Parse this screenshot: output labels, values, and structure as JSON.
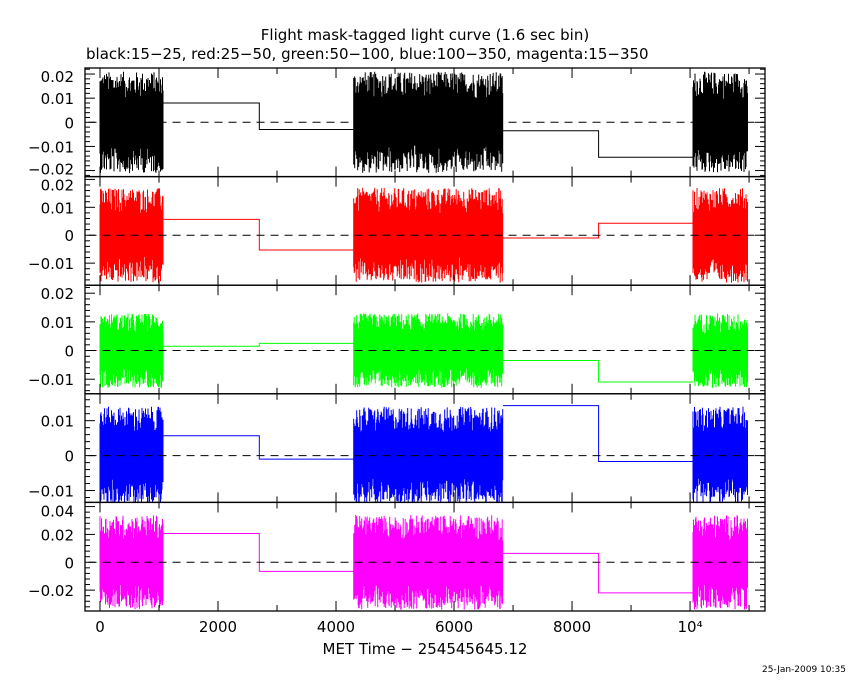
{
  "title": "Flight mask-tagged light curve (1.6 sec bin)",
  "subtitle": "black:15−25, red:25−50, green:50−100, blue:100−350, magenta:15−350",
  "timestamp": "25-Jan-2009 10:35",
  "chart_data": {
    "type": "line",
    "xlabel": "MET Time − 254545645.12",
    "xlim": [
      -254,
      11270
    ],
    "x_ticks": [
      0,
      2000,
      4000,
      6000,
      8000,
      10000
    ],
    "x_tick_labels": [
      "0",
      "2000",
      "4000",
      "6000",
      "8000",
      "10⁴"
    ],
    "data_intervals": [
      [
        0,
        1070
      ],
      [
        4300,
        6830
      ],
      [
        10050,
        10980
      ]
    ],
    "step_edges": [
      1070,
      2700,
      4300,
      6830,
      8450,
      10050
    ],
    "zero_line": "dashed",
    "panels": [
      {
        "band": "15-25",
        "color": "#000000",
        "ylim": [
          -0.0225,
          0.0225
        ],
        "y_ticks": [
          -0.02,
          -0.01,
          0,
          0.01,
          0.02
        ],
        "y_tick_labels": [
          "−0.02",
          "−0.01",
          "0",
          "0.01",
          "0.02"
        ],
        "noise_amplitude": 0.021,
        "step_values": [
          0.008,
          -0.003,
          -0.0035,
          -0.0145
        ]
      },
      {
        "band": "25-50",
        "color": "#ff0000",
        "ylim": [
          -0.0179,
          0.021
        ],
        "y_ticks": [
          -0.01,
          0,
          0.01,
          0.02
        ],
        "y_tick_labels": [
          "−0.01",
          "0",
          "0.01",
          "0.02"
        ],
        "noise_amplitude": 0.017,
        "step_values": [
          0.0057,
          -0.0053,
          -0.001,
          0.0043
        ]
      },
      {
        "band": "50-100",
        "color": "#00ff00",
        "ylim": [
          -0.0151,
          0.0228
        ],
        "y_ticks": [
          -0.01,
          0,
          0.01,
          0.02
        ],
        "y_tick_labels": [
          "−0.01",
          "0",
          "0.01",
          "0.02"
        ],
        "noise_amplitude": 0.013,
        "step_values": [
          0.0015,
          0.0025,
          -0.0035,
          -0.011
        ]
      },
      {
        "band": "100-350",
        "color": "#0000ff",
        "ylim": [
          -0.0134,
          0.0177
        ],
        "y_ticks": [
          -0.01,
          0,
          0.01
        ],
        "y_tick_labels": [
          "−0.01",
          "0",
          "0.01"
        ],
        "noise_amplitude": 0.014,
        "step_values": [
          0.0057,
          -0.001,
          0.0143,
          -0.0017
        ]
      },
      {
        "band": "15-350",
        "color": "#ff00ff",
        "ylim": [
          -0.035,
          0.043
        ],
        "y_ticks": [
          -0.02,
          0,
          0.02,
          0.04
        ],
        "y_tick_labels": [
          "−0.02",
          "0",
          "0.02",
          "0.04"
        ],
        "noise_amplitude": 0.034,
        "step_values": [
          0.0207,
          -0.0065,
          0.0064,
          -0.022
        ]
      }
    ]
  }
}
